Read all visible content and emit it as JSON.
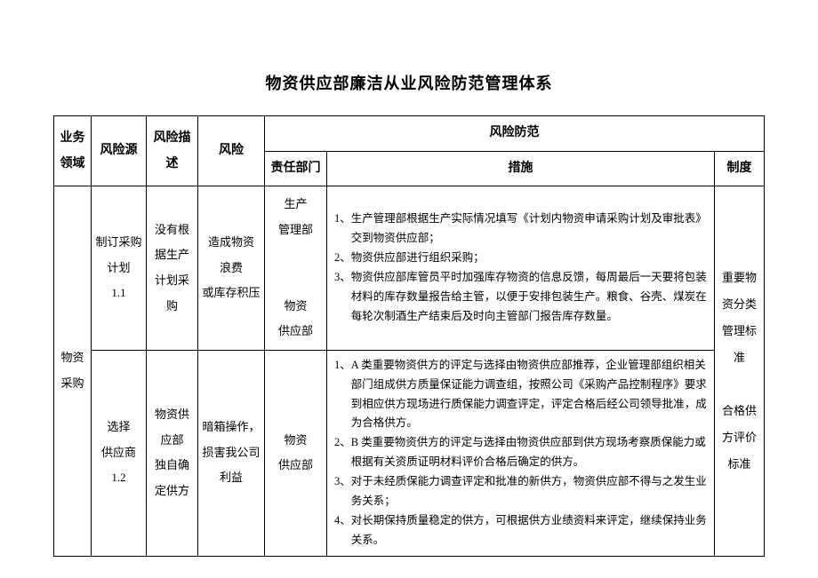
{
  "title": "物资供应部廉洁从业风险防范管理体系",
  "headers": {
    "domain": "业务领域",
    "source": "风险源",
    "desc": "风险描述",
    "risk": "风险",
    "prevention": "风险防范",
    "dept": "责任部门",
    "measures": "措施",
    "regime": "制度"
  },
  "rows": {
    "domain": "物资采购",
    "row1": {
      "source_a": "制订采购",
      "source_b": "计划",
      "source_c": "1.1",
      "desc_a": "没有根",
      "desc_b": "据生产",
      "desc_c": "计划采",
      "desc_d": "购",
      "risk_a": "造成物资",
      "risk_b": "浪费",
      "risk_c": "或库存积压",
      "dept_a": "生产",
      "dept_b": "管理部",
      "dept_c": "",
      "dept_d": "物资",
      "dept_e": "供应部",
      "measures": [
        {
          "num": "1、",
          "text": "生产管理部根据生产实际情况填写《计划内物资申请采购计划及审批表》交到物资供应部；"
        },
        {
          "num": "2、",
          "text": "物资供应部进行组织采购；"
        },
        {
          "num": "3、",
          "text": "物资供应部库管员平时加强库存物资的信息反馈，每周最后一天要将包装材料的库存数量报告给主管，以便于安排包装生产。粮食、谷壳、煤炭在每轮次制酒生产结束后及时向主管部门报告库存数量。"
        }
      ]
    },
    "row2": {
      "source_a": "选择",
      "source_b": "供应商",
      "source_c": "1.2",
      "desc_a": "物资供",
      "desc_b": "应部",
      "desc_c": "独自确",
      "desc_d": "定供方",
      "risk_a": "暗箱操作，",
      "risk_b": "损害我公司",
      "risk_c": "利益",
      "dept_a": "物资",
      "dept_b": "供应部",
      "measures": [
        {
          "num": "1、",
          "text": "A 类重要物资供方的评定与选择由物资供应部推荐，企业管理部组织相关部门组成供方质量保证能力调查组，按照公司《采购产品控制程序》要求到相应供方现场进行质保能力调查评定，评定合格后经公司领导批准，成为合格供方。"
        },
        {
          "num": "2、",
          "text": "B 类重要物资供方的评定与选择由物资供应部到供方现场考察质保能力或根据有关资质证明材料评价合格后确定的供方。"
        },
        {
          "num": "3、",
          "text": "对于未经质保能力调查评定和批准的新供方，物资供应部不得与之发生业务关系；"
        },
        {
          "num": "4、",
          "text": "对长期保持质量稳定的供方，可根据供方业绩资料来评定，继续保持业务关系。"
        }
      ]
    },
    "regime_a": "重要物",
    "regime_b": "资分类",
    "regime_c": "管理标",
    "regime_d": "准",
    "regime_e": "",
    "regime_f": "合格供",
    "regime_g": "方评价",
    "regime_h": "标准"
  }
}
